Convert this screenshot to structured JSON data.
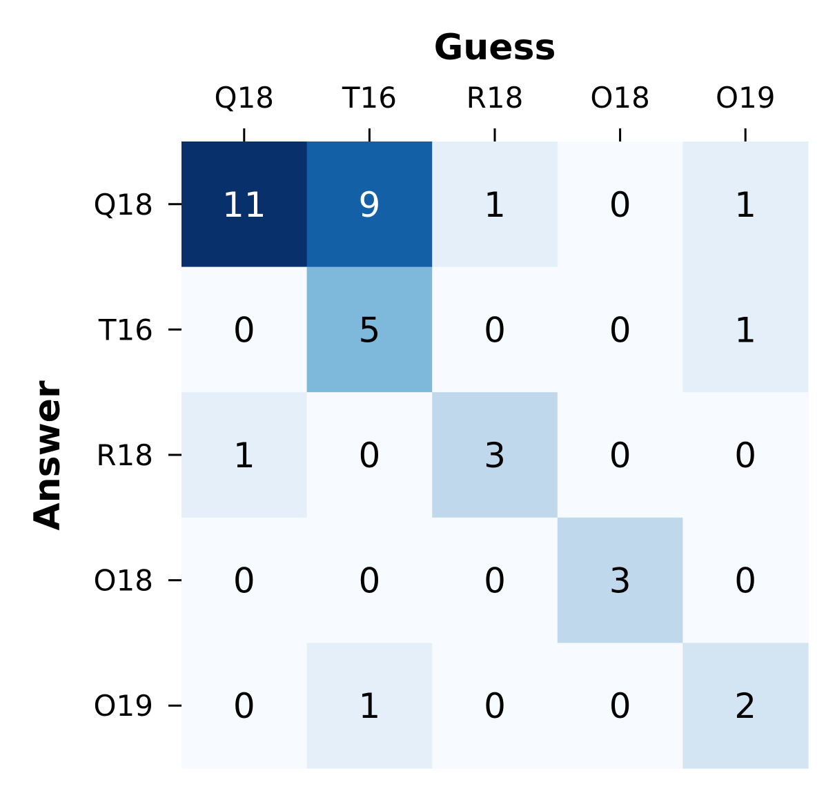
{
  "chart_data": {
    "type": "heatmap",
    "xlabel": "Guess",
    "ylabel": "Answer",
    "x_categories": [
      "Q18",
      "T16",
      "R18",
      "O18",
      "O19"
    ],
    "y_categories": [
      "Q18",
      "T16",
      "R18",
      "O18",
      "O19"
    ],
    "values": [
      [
        11,
        9,
        1,
        0,
        1
      ],
      [
        0,
        5,
        0,
        0,
        1
      ],
      [
        1,
        0,
        3,
        0,
        0
      ],
      [
        0,
        0,
        0,
        3,
        0
      ],
      [
        0,
        1,
        0,
        0,
        2
      ]
    ],
    "xaxis_position": "top",
    "colormap": "Blues",
    "color_min": 0,
    "color_max": 11,
    "colorbar": false,
    "grid": false
  }
}
